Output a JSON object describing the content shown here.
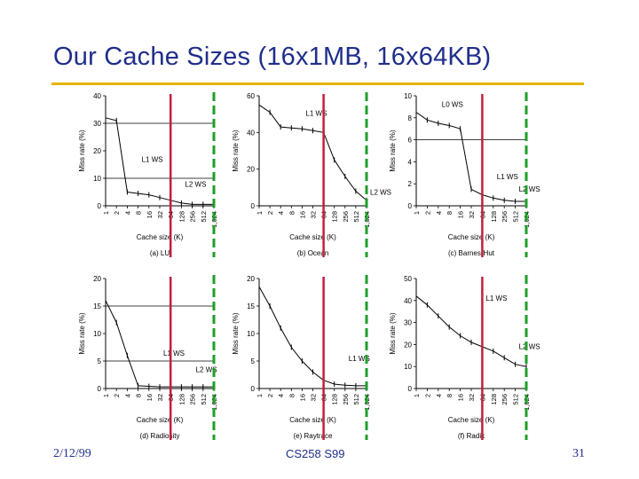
{
  "slide": {
    "title": "Our Cache Sizes (16x1MB, 16x64KB)",
    "date": "2/12/99",
    "course": "CS258 S99",
    "page_number": "31"
  },
  "colors": {
    "title_text": "#1f2e8a",
    "title_rule": "#e8b400",
    "l1_marker": "#c0203c",
    "l2_marker": "#1f9e2a",
    "curve": "#000000"
  },
  "markers": {
    "red_solid_cache_kb": 64,
    "green_dashed_cache_kb": 1024
  },
  "chart_data": [
    {
      "type": "line",
      "caption": "(a) LU",
      "xlabel": "Cache size (K)",
      "ylabel": "Miss rate (%)",
      "x_ticks": [
        "1",
        "2",
        "4",
        "8",
        "16",
        "32",
        "64",
        "128",
        "256",
        "512",
        "1,024"
      ],
      "ylim": [
        0,
        40
      ],
      "y_ticks": [
        0,
        10,
        20,
        30,
        40
      ],
      "hlines": [
        30,
        10
      ],
      "x": [
        1,
        2,
        4,
        8,
        16,
        32,
        64,
        128,
        256,
        512,
        1024
      ],
      "values": [
        32,
        31,
        5,
        4.5,
        4,
        3,
        2,
        1,
        0.5,
        0.5,
        0.5
      ],
      "annotations": [
        {
          "text": "L1 WS",
          "x": 8,
          "y": 16
        },
        {
          "text": "L2 WS",
          "x": 128,
          "y": 7
        }
      ]
    },
    {
      "type": "line",
      "caption": "(b) Ocean",
      "xlabel": "Cache size (K)",
      "ylabel": "Miss rate (%)",
      "x_ticks": [
        "1",
        "2",
        "4",
        "8",
        "16",
        "32",
        "64",
        "128",
        "256",
        "512",
        "1,024"
      ],
      "ylim": [
        0,
        60
      ],
      "y_ticks": [
        0,
        20,
        40,
        60
      ],
      "hlines": [],
      "x": [
        1,
        2,
        4,
        8,
        16,
        32,
        64,
        128,
        256,
        512,
        1024
      ],
      "values": [
        55,
        51,
        43,
        42.5,
        42,
        41,
        40,
        25,
        16,
        8,
        3
      ],
      "annotations": [
        {
          "text": "L1 WS",
          "x": 16,
          "y": 49
        },
        {
          "text": "L2 WS",
          "x": 1024,
          "y": 6
        }
      ]
    },
    {
      "type": "line",
      "caption": "(c) Barnes-Hut",
      "xlabel": "Cache size (K)",
      "ylabel": "Miss rate (%)",
      "x_ticks": [
        "1",
        "2",
        "4",
        "8",
        "16",
        "32",
        "64",
        "128",
        "256",
        "512",
        "1,024"
      ],
      "ylim": [
        0,
        10
      ],
      "y_ticks": [
        0,
        2,
        4,
        6,
        8,
        10
      ],
      "hlines": [
        6
      ],
      "x": [
        1,
        2,
        4,
        8,
        16,
        32,
        64,
        128,
        256,
        512,
        1024
      ],
      "values": [
        8.5,
        7.8,
        7.5,
        7.3,
        7,
        1.5,
        1,
        0.7,
        0.5,
        0.4,
        0.4
      ],
      "annotations": [
        {
          "text": "L0 WS",
          "x": 4,
          "y": 9
        },
        {
          "text": "L1 WS",
          "x": 128,
          "y": 2.4
        },
        {
          "text": "L2 WS",
          "x": 512,
          "y": 1.3
        }
      ]
    },
    {
      "type": "line",
      "caption": "(d) Radiosity",
      "xlabel": "Cache size (K)",
      "ylabel": "Miss rate (%)",
      "x_ticks": [
        "1",
        "2",
        "4",
        "8",
        "16",
        "32",
        "64",
        "128",
        "256",
        "512",
        "1,024"
      ],
      "ylim": [
        0,
        20
      ],
      "y_ticks": [
        0,
        5,
        10,
        15,
        20
      ],
      "hlines": [
        15,
        5
      ],
      "x": [
        1,
        2,
        4,
        8,
        16,
        32,
        64,
        128,
        256,
        512,
        1024
      ],
      "values": [
        16,
        12,
        6,
        0.5,
        0.4,
        0.3,
        0.3,
        0.3,
        0.3,
        0.3,
        0.3
      ],
      "annotations": [
        {
          "text": "L1 WS",
          "x": 32,
          "y": 6
        },
        {
          "text": "L2 WS",
          "x": 256,
          "y": 3
        }
      ]
    },
    {
      "type": "line",
      "caption": "(e) Raytrace",
      "xlabel": "Cache size (K)",
      "ylabel": "Miss rate (%)",
      "x_ticks": [
        "1",
        "2",
        "4",
        "8",
        "16",
        "32",
        "64",
        "128",
        "256",
        "512",
        "1,024"
      ],
      "ylim": [
        0,
        20
      ],
      "y_ticks": [
        0,
        5,
        10,
        15,
        20
      ],
      "hlines": [],
      "x": [
        1,
        2,
        4,
        8,
        16,
        32,
        64,
        128,
        256,
        512,
        1024
      ],
      "values": [
        18.5,
        15,
        11,
        7.5,
        5,
        3,
        1.5,
        0.8,
        0.6,
        0.5,
        0.5
      ],
      "annotations": [
        {
          "text": "L1 WS",
          "x": 256,
          "y": 5
        }
      ]
    },
    {
      "type": "line",
      "caption": "(f) Radix",
      "xlabel": "Cache size (K)",
      "ylabel": "Miss rate (%)",
      "x_ticks": [
        "1",
        "2",
        "4",
        "8",
        "16",
        "32",
        "64",
        "128",
        "256",
        "512",
        "1,024"
      ],
      "ylim": [
        0,
        50
      ],
      "y_ticks": [
        0,
        10,
        20,
        30,
        40,
        50
      ],
      "hlines": [],
      "x": [
        1,
        2,
        4,
        8,
        16,
        32,
        64,
        128,
        256,
        512,
        1024
      ],
      "values": [
        42,
        38,
        33,
        28,
        24,
        21,
        19,
        17,
        14,
        11,
        10
      ],
      "annotations": [
        {
          "text": "L1 WS",
          "x": 64,
          "y": 40
        },
        {
          "text": "L2 WS",
          "x": 512,
          "y": 18
        }
      ]
    }
  ]
}
